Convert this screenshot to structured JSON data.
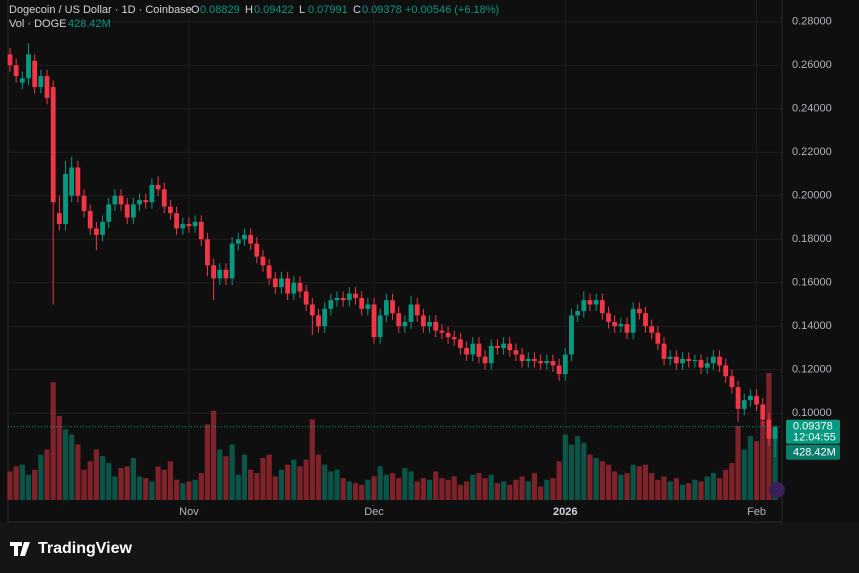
{
  "chart_data": {
    "type": "candlestick",
    "title": "Dogecoin / US Dollar · 1D · Coinbase",
    "ohlc_names": [
      "O",
      "H",
      "L",
      "C"
    ],
    "change_label": "+0.00546 (+6.18%)",
    "volume_title": "Vol · DOGE",
    "last_volume_label": "428.42M",
    "countdown": "12:04:55",
    "brand": "TradingView",
    "up_color": "#089981",
    "down_color": "#f23645",
    "grid": true,
    "ylim": [
      0.05,
      0.29
    ],
    "yticks": [
      {
        "value": 0.1,
        "label": "0.10000"
      },
      {
        "value": 0.12,
        "label": "0.12000"
      },
      {
        "value": 0.14,
        "label": "0.14000"
      },
      {
        "value": 0.16,
        "label": "0.16000"
      },
      {
        "value": 0.18,
        "label": "0.18000"
      },
      {
        "value": 0.2,
        "label": "0.20000"
      },
      {
        "value": 0.22,
        "label": "0.22000"
      },
      {
        "value": 0.24,
        "label": "0.24000"
      },
      {
        "value": 0.26,
        "label": "0.26000"
      },
      {
        "value": 0.28,
        "label": "0.28000"
      }
    ],
    "categories": [
      null,
      null,
      null,
      null,
      null,
      null,
      null,
      null,
      null,
      null,
      null,
      null,
      null,
      null,
      null,
      null,
      null,
      null,
      null,
      null,
      null,
      null,
      null,
      null,
      null,
      null,
      null,
      null,
      null,
      "Nov",
      null,
      null,
      null,
      null,
      null,
      null,
      null,
      null,
      null,
      null,
      null,
      null,
      null,
      null,
      null,
      null,
      null,
      null,
      null,
      null,
      null,
      null,
      null,
      null,
      null,
      null,
      null,
      null,
      null,
      "Dec",
      null,
      null,
      null,
      null,
      null,
      null,
      null,
      null,
      null,
      null,
      null,
      null,
      null,
      null,
      null,
      null,
      null,
      null,
      null,
      null,
      null,
      null,
      null,
      null,
      null,
      null,
      null,
      null,
      null,
      null,
      "2026",
      null,
      null,
      null,
      null,
      null,
      null,
      null,
      null,
      null,
      null,
      null,
      null,
      null,
      null,
      null,
      null,
      null,
      null,
      null,
      null,
      null,
      null,
      null,
      null,
      null,
      null,
      null,
      null,
      null,
      null,
      "Feb",
      null,
      null,
      null
    ],
    "open": [
      0.265,
      0.26,
      0.252,
      0.254,
      0.262,
      0.25,
      0.255,
      0.25,
      0.192,
      0.187,
      0.2,
      0.213,
      0.2,
      0.193,
      0.185,
      0.182,
      0.188,
      0.196,
      0.2,
      0.196,
      0.19,
      0.196,
      0.198,
      0.197,
      0.205,
      0.203,
      0.195,
      0.192,
      0.185,
      0.187,
      0.186,
      0.188,
      0.18,
      0.168,
      0.162,
      0.166,
      0.162,
      0.178,
      0.18,
      0.182,
      0.178,
      0.172,
      0.168,
      0.162,
      0.158,
      0.162,
      0.155,
      0.16,
      0.156,
      0.15,
      0.145,
      0.14,
      0.148,
      0.152,
      0.153,
      0.152,
      0.155,
      0.153,
      0.148,
      0.15,
      0.135,
      0.145,
      0.152,
      0.146,
      0.14,
      0.142,
      0.15,
      0.145,
      0.14,
      0.142,
      0.138,
      0.137,
      0.135,
      0.134,
      0.13,
      0.127,
      0.132,
      0.126,
      0.123,
      0.131,
      0.13,
      0.132,
      0.129,
      0.127,
      0.124,
      0.125,
      0.124,
      0.123,
      0.124,
      0.122,
      0.118,
      0.127,
      0.145,
      0.147,
      0.152,
      0.15,
      0.152,
      0.146,
      0.142,
      0.14,
      0.141,
      0.137,
      0.148,
      0.146,
      0.14,
      0.137,
      0.132,
      0.125,
      0.126,
      0.123,
      0.125,
      0.124,
      0.1245,
      0.121,
      0.123,
      0.126,
      0.122,
      0.117,
      0.112,
      0.102,
      0.106,
      0.108,
      0.104,
      0.097,
      0.08829
    ],
    "high": [
      0.268,
      0.263,
      0.257,
      0.27,
      0.265,
      0.258,
      0.258,
      0.253,
      0.2,
      0.216,
      0.218,
      0.216,
      0.203,
      0.196,
      0.188,
      0.191,
      0.199,
      0.203,
      0.203,
      0.199,
      0.199,
      0.201,
      0.201,
      0.208,
      0.209,
      0.206,
      0.198,
      0.195,
      0.19,
      0.19,
      0.191,
      0.191,
      0.183,
      0.171,
      0.169,
      0.169,
      0.181,
      0.183,
      0.185,
      0.185,
      0.181,
      0.175,
      0.171,
      0.165,
      0.165,
      0.165,
      0.163,
      0.163,
      0.159,
      0.153,
      0.148,
      0.151,
      0.155,
      0.156,
      0.156,
      0.158,
      0.158,
      0.156,
      0.153,
      0.153,
      0.148,
      0.155,
      0.155,
      0.149,
      0.145,
      0.154,
      0.153,
      0.148,
      0.145,
      0.145,
      0.141,
      0.14,
      0.138,
      0.137,
      0.133,
      0.135,
      0.135,
      0.129,
      0.134,
      0.134,
      0.135,
      0.135,
      0.132,
      0.13,
      0.128,
      0.128,
      0.127,
      0.127,
      0.127,
      0.125,
      0.13,
      0.148,
      0.15,
      0.156,
      0.155,
      0.155,
      0.155,
      0.149,
      0.145,
      0.144,
      0.144,
      0.151,
      0.151,
      0.149,
      0.143,
      0.14,
      0.135,
      0.129,
      0.129,
      0.128,
      0.128,
      0.127,
      0.127,
      0.126,
      0.129,
      0.129,
      0.125,
      0.12,
      0.115,
      0.109,
      0.111,
      0.111,
      0.107,
      0.1,
      0.09422
    ],
    "low": [
      0.257,
      0.252,
      0.249,
      0.251,
      0.247,
      0.247,
      0.242,
      0.15,
      0.184,
      0.184,
      0.197,
      0.197,
      0.19,
      0.182,
      0.175,
      0.179,
      0.185,
      0.193,
      0.193,
      0.187,
      0.187,
      0.193,
      0.194,
      0.194,
      0.2,
      0.192,
      0.189,
      0.182,
      0.182,
      0.183,
      0.183,
      0.177,
      0.163,
      0.152,
      0.159,
      0.159,
      0.159,
      0.175,
      0.177,
      0.175,
      0.169,
      0.165,
      0.159,
      0.155,
      0.155,
      0.152,
      0.152,
      0.153,
      0.147,
      0.136,
      0.137,
      0.137,
      0.145,
      0.149,
      0.149,
      0.149,
      0.15,
      0.145,
      0.145,
      0.132,
      0.132,
      0.142,
      0.143,
      0.137,
      0.137,
      0.139,
      0.142,
      0.137,
      0.137,
      0.135,
      0.134,
      0.132,
      0.131,
      0.127,
      0.124,
      0.124,
      0.123,
      0.12,
      0.12,
      0.127,
      0.127,
      0.126,
      0.124,
      0.121,
      0.121,
      0.121,
      0.12,
      0.12,
      0.119,
      0.115,
      0.115,
      0.124,
      0.142,
      0.144,
      0.147,
      0.147,
      0.143,
      0.139,
      0.137,
      0.137,
      0.134,
      0.134,
      0.143,
      0.137,
      0.134,
      0.129,
      0.122,
      0.122,
      0.12,
      0.12,
      0.121,
      0.121,
      0.118,
      0.118,
      0.12,
      0.119,
      0.114,
      0.109,
      0.096,
      0.099,
      0.103,
      0.101,
      0.094,
      0.085,
      0.07991
    ],
    "close": [
      0.26,
      0.255,
      0.254,
      0.265,
      0.25,
      0.255,
      0.245,
      0.197,
      0.187,
      0.21,
      0.213,
      0.2,
      0.193,
      0.185,
      0.182,
      0.188,
      0.196,
      0.2,
      0.196,
      0.19,
      0.196,
      0.198,
      0.197,
      0.205,
      0.203,
      0.195,
      0.192,
      0.185,
      0.187,
      0.186,
      0.188,
      0.18,
      0.168,
      0.162,
      0.166,
      0.162,
      0.178,
      0.18,
      0.182,
      0.178,
      0.172,
      0.168,
      0.162,
      0.158,
      0.162,
      0.155,
      0.16,
      0.156,
      0.15,
      0.145,
      0.14,
      0.148,
      0.152,
      0.153,
      0.152,
      0.155,
      0.153,
      0.148,
      0.15,
      0.135,
      0.145,
      0.152,
      0.146,
      0.14,
      0.142,
      0.15,
      0.145,
      0.14,
      0.142,
      0.138,
      0.137,
      0.135,
      0.134,
      0.13,
      0.127,
      0.132,
      0.126,
      0.123,
      0.131,
      0.13,
      0.132,
      0.129,
      0.127,
      0.124,
      0.125,
      0.124,
      0.123,
      0.124,
      0.122,
      0.118,
      0.127,
      0.145,
      0.147,
      0.152,
      0.15,
      0.152,
      0.146,
      0.142,
      0.14,
      0.141,
      0.137,
      0.148,
      0.146,
      0.14,
      0.137,
      0.132,
      0.125,
      0.126,
      0.123,
      0.125,
      0.124,
      0.1245,
      0.121,
      0.123,
      0.126,
      0.122,
      0.117,
      0.112,
      0.102,
      0.106,
      0.108,
      0.104,
      0.097,
      0.0883,
      0.09378
    ],
    "volume": [
      170,
      200,
      210,
      150,
      180,
      270,
      300,
      700,
      500,
      420,
      390,
      330,
      180,
      230,
      300,
      260,
      220,
      140,
      190,
      200,
      250,
      140,
      130,
      110,
      200,
      180,
      230,
      120,
      100,
      110,
      120,
      160,
      450,
      530,
      300,
      260,
      330,
      150,
      270,
      180,
      160,
      250,
      270,
      140,
      180,
      210,
      240,
      200,
      240,
      480,
      270,
      210,
      170,
      180,
      130,
      110,
      100,
      90,
      120,
      140,
      200,
      150,
      160,
      130,
      190,
      170,
      110,
      130,
      120,
      170,
      130,
      120,
      140,
      90,
      110,
      150,
      160,
      130,
      150,
      100,
      110,
      90,
      120,
      140,
      110,
      160,
      80,
      120,
      130,
      230,
      390,
      330,
      380,
      340,
      270,
      250,
      230,
      210,
      170,
      150,
      160,
      210,
      200,
      210,
      160,
      120,
      140,
      110,
      130,
      90,
      100,
      120,
      110,
      140,
      160,
      130,
      180,
      220,
      440,
      300,
      380,
      350,
      470,
      755,
      428.42
    ]
  }
}
